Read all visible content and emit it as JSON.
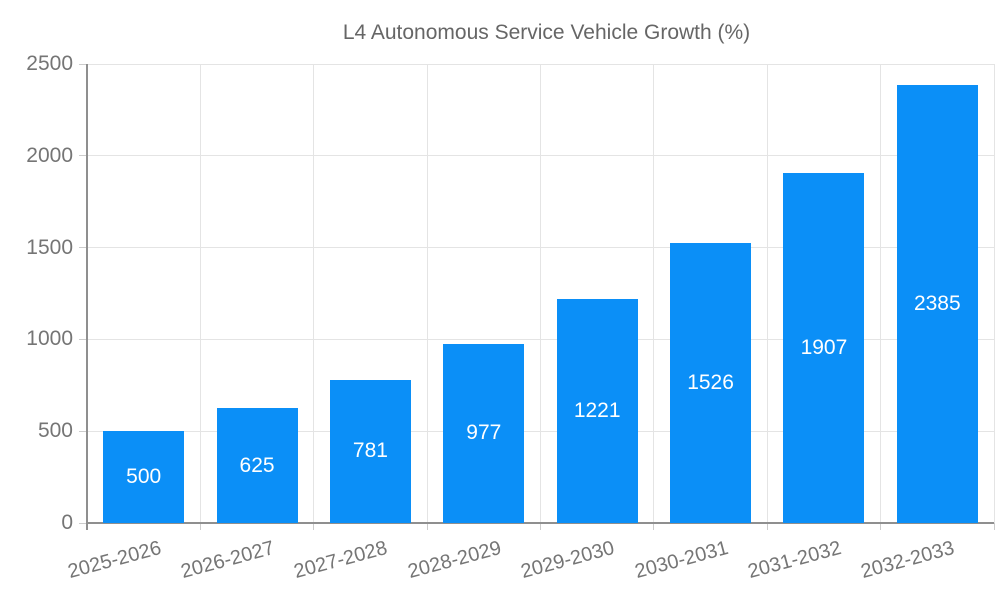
{
  "legend": {
    "label": "L4 Autonomous Service Vehicle Growth (%)"
  },
  "chart_data": {
    "type": "bar",
    "title": "L4 Autonomous Service Vehicle Growth (%)",
    "categories": [
      "2025-2026",
      "2026-2027",
      "2027-2028",
      "2028-2029",
      "2029-2030",
      "2030-2031",
      "2031-2032",
      "2032-2033"
    ],
    "values": [
      500,
      625,
      781,
      977,
      1221,
      1526,
      1907,
      2385
    ],
    "value_labels": [
      "500",
      "625",
      "781",
      "977",
      "1221",
      "1526",
      "1907",
      "2385"
    ],
    "xlabel": "",
    "ylabel": "",
    "ylim": [
      0,
      2500
    ],
    "yticks": [
      0,
      500,
      1000,
      1500,
      2000,
      2500
    ],
    "ytick_labels": [
      "0",
      "500",
      "1000",
      "1500",
      "2000",
      "2500"
    ],
    "grid": true,
    "legend_position": "top-center",
    "bar_color": "#0b8ff7",
    "value_label_color": "#ffffff",
    "axis_text_color": "#757575"
  }
}
